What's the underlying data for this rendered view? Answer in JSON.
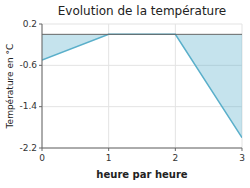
{
  "chart_data": {
    "type": "area",
    "title": "Evolution de la température",
    "xlabel": "heure par heure",
    "ylabel": "Température en °C",
    "x": [
      0,
      1,
      2,
      3
    ],
    "values": [
      -0.5,
      0.0,
      0.0,
      -2.0
    ],
    "color": "#5aafca",
    "xlim": [
      0,
      3
    ],
    "ylim": [
      -2.2,
      0.2
    ],
    "xticks": [
      0,
      1,
      2,
      3
    ],
    "yticks": [
      -2.2,
      -1.4,
      -0.6,
      0.2
    ],
    "grid": true
  }
}
